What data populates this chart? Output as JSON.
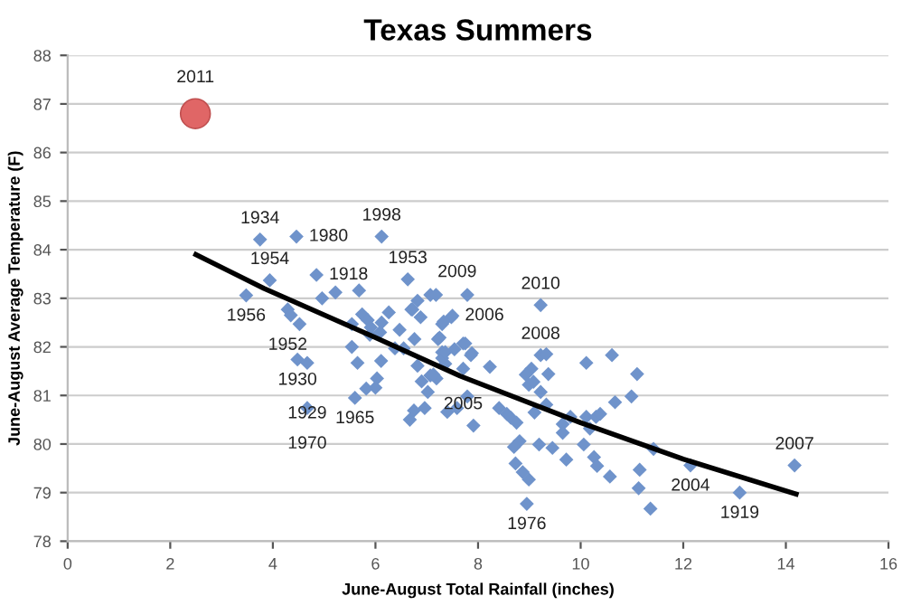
{
  "chart_data": {
    "type": "scatter",
    "title": "Texas Summers",
    "xlabel": "June-August Total Rainfall (inches)",
    "ylabel": "June-August Average Temperature (F)",
    "xlim": [
      0,
      16
    ],
    "xticks": [
      0,
      2,
      4,
      6,
      8,
      10,
      12,
      14,
      16
    ],
    "ylim": [
      78,
      88
    ],
    "yticks": [
      78,
      79,
      80,
      81,
      82,
      83,
      84,
      85,
      86,
      87,
      88
    ],
    "grid": "y",
    "series": [
      {
        "marker": "diamond",
        "color": "#6f93cb",
        "x": [
          3.48,
          4.29,
          4.35,
          4.52,
          4.96,
          5.22,
          5.68,
          5.74,
          5.85,
          5.91,
          5.89,
          6.12,
          6.26,
          6.09,
          5.54,
          5.54,
          5.65,
          6.11,
          6.03,
          6.0,
          5.82,
          5.6,
          4.48,
          4.67,
          4.67,
          6.47,
          6.55,
          6.38,
          6.76,
          6.82,
          6.9,
          7.02,
          7.07,
          7.19,
          7.36,
          7.54,
          7.22,
          7.3,
          7.07,
          6.7,
          6.88,
          6.82,
          7.48,
          7.3,
          7.3,
          6.96,
          6.67,
          6.75,
          7.4,
          7.59,
          3.75,
          4.46,
          6.12,
          4.85,
          3.94,
          6.63,
          7.18,
          6.72,
          7.5,
          7.33,
          7.79,
          9.22,
          7.25,
          7.71,
          7.36,
          7.88,
          10.61,
          7.75,
          7.86,
          7.71,
          7.13,
          7.79,
          7.91,
          8.23,
          9.22,
          9.33,
          9.37,
          9.04,
          8.93,
          8.99,
          9.08,
          9.22,
          9.33,
          9.1,
          8.41,
          8.56,
          8.64,
          8.75,
          8.81,
          8.7,
          9.19,
          8.73,
          8.87,
          8.99,
          8.95,
          9.45,
          9.72,
          9.8,
          9.65,
          9.65,
          10.06,
          10.11,
          10.11,
          10.18,
          10.3,
          10.38,
          10.26,
          10.32,
          10.57,
          10.67,
          10.99,
          11.1,
          11.15,
          11.13,
          11.36,
          11.42,
          12.14,
          13.1,
          14.17
        ],
        "values": [
          83.06,
          82.77,
          82.65,
          82.47,
          83.0,
          83.12,
          83.16,
          82.67,
          82.55,
          82.4,
          82.25,
          82.5,
          82.71,
          82.3,
          82.47,
          82.0,
          81.67,
          81.71,
          81.35,
          81.16,
          81.14,
          80.95,
          81.74,
          81.67,
          80.74,
          82.35,
          81.97,
          81.97,
          82.16,
          81.61,
          81.29,
          81.07,
          81.41,
          81.35,
          81.65,
          81.95,
          82.16,
          82.47,
          83.07,
          82.77,
          82.61,
          82.95,
          82.61,
          81.89,
          81.77,
          80.74,
          80.5,
          80.69,
          80.66,
          80.74,
          84.21,
          84.27,
          84.27,
          83.48,
          83.37,
          83.39,
          83.07,
          82.77,
          82.64,
          82.52,
          83.07,
          82.86,
          82.19,
          82.07,
          81.89,
          81.87,
          81.83,
          82.07,
          81.83,
          81.55,
          81.43,
          80.98,
          80.38,
          81.59,
          81.83,
          81.85,
          81.44,
          81.55,
          81.43,
          81.22,
          81.28,
          81.07,
          80.81,
          80.65,
          80.74,
          80.62,
          80.54,
          80.44,
          80.06,
          79.94,
          79.99,
          79.6,
          79.42,
          79.27,
          78.77,
          79.92,
          79.68,
          80.56,
          80.41,
          80.23,
          79.99,
          81.67,
          80.56,
          80.32,
          80.56,
          80.62,
          79.73,
          79.55,
          79.33,
          80.86,
          80.98,
          81.44,
          79.47,
          79.09,
          78.67,
          79.9,
          79.56,
          79.0,
          79.56
        ]
      },
      {
        "type": "bubble",
        "color": "#e06666",
        "x": [
          2.49
        ],
        "values": [
          86.8
        ]
      },
      {
        "type": "line",
        "color": "#000000",
        "x": [
          2.5,
          3.83,
          6.0,
          7.65,
          10.0,
          12.0,
          14.2
        ],
        "values": [
          83.9,
          83.2,
          82.19,
          81.4,
          80.44,
          79.69,
          78.97
        ]
      }
    ],
    "annotations": [
      {
        "text": "2011",
        "x": 2.49,
        "y": 86.8
      },
      {
        "text": "1934",
        "x": 3.75,
        "y": 84.21
      },
      {
        "text": "1980",
        "x": 4.46,
        "y": 84.27
      },
      {
        "text": "1998",
        "x": 6.12,
        "y": 84.27
      },
      {
        "text": "1918",
        "x": 4.85,
        "y": 83.48
      },
      {
        "text": "1954",
        "x": 3.94,
        "y": 83.37
      },
      {
        "text": "1953",
        "x": 6.63,
        "y": 83.39
      },
      {
        "text": "1956",
        "x": 3.48,
        "y": 83.06
      },
      {
        "text": "1952",
        "x": 4.29,
        "y": 82.77
      },
      {
        "text": "2009",
        "x": 6.82,
        "y": 82.95
      },
      {
        "text": "2006",
        "x": 7.5,
        "y": 82.64
      },
      {
        "text": "2010",
        "x": 9.22,
        "y": 82.86
      },
      {
        "text": "2008",
        "x": 9.22,
        "y": 81.83
      },
      {
        "text": "2005",
        "x": 7.71,
        "y": 81.55
      },
      {
        "text": "1930",
        "x": 4.48,
        "y": 81.74
      },
      {
        "text": "1929",
        "x": 4.67,
        "y": 81.67
      },
      {
        "text": "1970",
        "x": 4.67,
        "y": 80.74
      },
      {
        "text": "1965",
        "x": 5.6,
        "y": 80.95
      },
      {
        "text": "1976",
        "x": 8.95,
        "y": 78.77
      },
      {
        "text": "2004",
        "x": 12.14,
        "y": 79.56
      },
      {
        "text": "1919",
        "x": 13.1,
        "y": 79.0
      },
      {
        "text": "2007",
        "x": 14.17,
        "y": 79.56
      }
    ]
  }
}
